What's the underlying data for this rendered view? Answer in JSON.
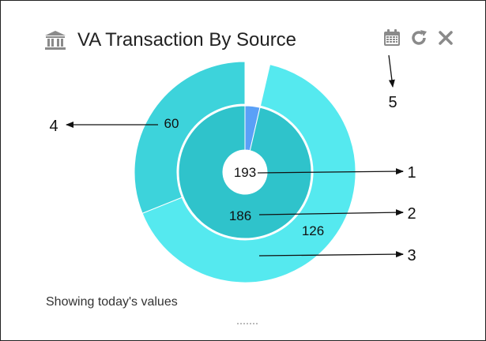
{
  "widget": {
    "title": "VA Transaction By Source",
    "footer": "Showing today's values",
    "icons": [
      "bank-icon",
      "calendar-icon",
      "refresh-icon",
      "close-icon"
    ]
  },
  "colors": {
    "outer_light": "#55E9EF",
    "outer_dark": "#3DD3DB",
    "inner": "#2FC3CB",
    "inner_accent": "#5AA0F7",
    "icon_gray": "#8a8a8a"
  },
  "chart_data": {
    "type": "pie",
    "center_value": 193,
    "rings": [
      {
        "name": "inner",
        "slices": [
          {
            "value": 7,
            "color": "#5AA0F7"
          },
          {
            "value": 186,
            "label": "186",
            "color": "#2FC3CB"
          }
        ]
      },
      {
        "name": "outer",
        "slices": [
          {
            "value": 7,
            "color": "#ffffff"
          },
          {
            "value": 126,
            "label": "126",
            "color": "#55E9EF"
          },
          {
            "value": 60,
            "label": "60",
            "color": "#3DD3DB"
          }
        ]
      }
    ]
  },
  "annotations": [
    {
      "label": "1"
    },
    {
      "label": "2"
    },
    {
      "label": "3"
    },
    {
      "label": "4"
    },
    {
      "label": "5"
    }
  ]
}
